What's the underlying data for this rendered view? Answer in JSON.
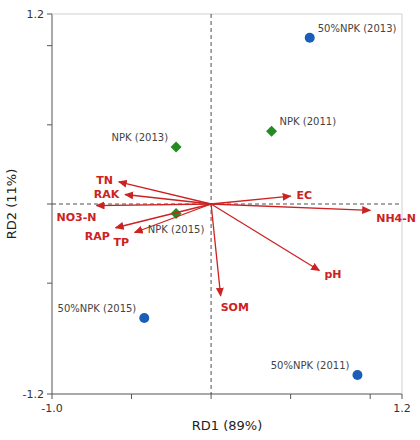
{
  "chart_data": {
    "type": "scatter",
    "xlabel": "RD1 (89%)",
    "ylabel": "RD2 (11%)",
    "xlim": [
      -1.0,
      1.2
    ],
    "ylim": [
      -1.2,
      1.2
    ],
    "xticks": [
      {
        "value": -1.0,
        "label": "-1.0"
      },
      {
        "value": -0.5,
        "label": null
      },
      {
        "value": 0.0,
        "label": null
      },
      {
        "value": 0.5,
        "label": null
      },
      {
        "value": 1.0,
        "label": null
      },
      1.2
    ],
    "yticks": [
      -1.2,
      {
        "value": -0.5,
        "label": null
      },
      {
        "value": 0.0,
        "label": null
      },
      {
        "value": 0.5,
        "label": null
      },
      {
        "value": 1.0,
        "label": null
      },
      1.2
    ],
    "grid": false,
    "series": [
      {
        "type": "scatter",
        "marker": "circle",
        "color": "#1a5eb8",
        "x": [
          0.62,
          0.92,
          -0.42
        ],
        "values": [
          1.05,
          -1.08,
          -0.72
        ],
        "labels": [
          "50%NPK (2013)",
          "50%NPK (2011)",
          "50%NPK (2015)"
        ]
      },
      {
        "type": "scatter",
        "marker": "diamond",
        "color": "#228b22",
        "x": [
          0.38,
          -0.22,
          -0.22
        ],
        "values": [
          0.46,
          0.36,
          -0.06
        ],
        "labels": [
          "NPK (2011)",
          "NPK (2013)",
          "NPK (2015)"
        ]
      },
      {
        "type": "arrow",
        "color": "#cc2222",
        "x": [
          0.5,
          1.0,
          0.68,
          0.06,
          -0.58,
          -0.54,
          -0.72,
          -0.6,
          -0.48
        ],
        "values": [
          0.05,
          -0.04,
          -0.42,
          -0.58,
          0.14,
          0.06,
          -0.01,
          -0.15,
          -0.18
        ],
        "labels": [
          "EC",
          "NH4-N",
          "pH",
          "SOM",
          "TN",
          "RAK",
          "NO3-N",
          "RAP",
          "TP"
        ]
      }
    ]
  }
}
